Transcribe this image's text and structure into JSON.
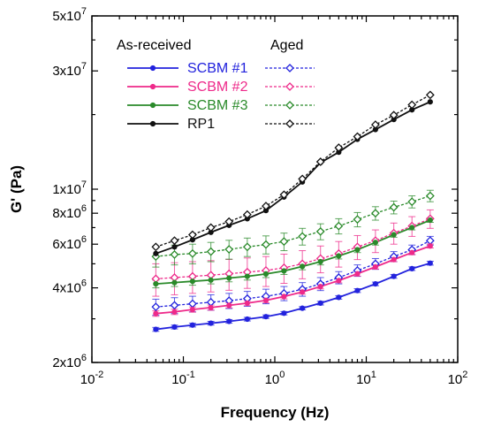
{
  "chart_data": {
    "type": "line",
    "xlabel": "Frequency (Hz)",
    "ylabel": "G' (Pa)",
    "xscale": "log",
    "yscale": "log",
    "xlim": [
      0.01,
      100
    ],
    "ylim": [
      2000000,
      50000000
    ],
    "x_ticks": [
      {
        "value": 0.01,
        "base": "10",
        "exp": "-2"
      },
      {
        "value": 0.1,
        "base": "10",
        "exp": "-1"
      },
      {
        "value": 1,
        "base": "10",
        "exp": "0"
      },
      {
        "value": 10,
        "base": "10",
        "exp": "1"
      },
      {
        "value": 100,
        "base": "10",
        "exp": "2"
      }
    ],
    "y_ticks": [
      {
        "value": 2000000,
        "base": "2x10",
        "exp": "6"
      },
      {
        "value": 4000000,
        "base": "4x10",
        "exp": "6"
      },
      {
        "value": 6000000,
        "base": "6x10",
        "exp": "6"
      },
      {
        "value": 8000000,
        "base": "8x10",
        "exp": "6"
      },
      {
        "value": 10000000,
        "base": "1x10",
        "exp": "7"
      },
      {
        "value": 30000000,
        "base": "3x10",
        "exp": "7"
      },
      {
        "value": 50000000,
        "base": "5x10",
        "exp": "7"
      }
    ],
    "legend": {
      "position": "top-left",
      "header_left": "As-received",
      "header_right": "Aged"
    },
    "x": [
      0.05,
      0.08,
      0.126,
      0.2,
      0.316,
      0.5,
      0.8,
      1.26,
      2.0,
      3.16,
      5.0,
      8.0,
      12.6,
      20.0,
      31.6,
      50.0
    ],
    "series": [
      {
        "name": "SCBM #1",
        "condition": "As-received",
        "color": "#2222dd",
        "style": "solid",
        "marker": "filled-circle",
        "values": [
          2720000,
          2780000,
          2830000,
          2880000,
          2930000,
          2990000,
          3060000,
          3160000,
          3310000,
          3470000,
          3660000,
          3900000,
          4150000,
          4450000,
          4780000,
          5030000
        ],
        "errors": [
          50000,
          50000,
          50000,
          50000,
          50000,
          50000,
          50000,
          50000,
          50000,
          60000,
          60000,
          70000,
          70000,
          80000,
          80000,
          90000
        ]
      },
      {
        "name": "SCBM #1",
        "condition": "Aged",
        "color": "#2222dd",
        "style": "dotted",
        "marker": "open-diamond",
        "values": [
          3350000,
          3400000,
          3450000,
          3500000,
          3550000,
          3620000,
          3700000,
          3800000,
          3950000,
          4150000,
          4400000,
          4700000,
          5000000,
          5350000,
          5700000,
          6200000
        ],
        "errors": [
          250000,
          250000,
          250000,
          250000,
          250000,
          250000,
          250000,
          250000,
          250000,
          250000,
          250000,
          250000,
          250000,
          250000,
          250000,
          250000
        ]
      },
      {
        "name": "SCBM #2",
        "condition": "As-received",
        "color": "#ee2a8a",
        "style": "solid",
        "marker": "filled-circle",
        "values": [
          3150000,
          3200000,
          3270000,
          3330000,
          3400000,
          3470000,
          3560000,
          3690000,
          3850000,
          4050000,
          4280000,
          4560000,
          4860000,
          5200000,
          5550000,
          5900000
        ],
        "errors": [
          80000,
          80000,
          80000,
          80000,
          80000,
          80000,
          80000,
          80000,
          80000,
          90000,
          90000,
          100000,
          100000,
          100000,
          110000,
          110000
        ]
      },
      {
        "name": "SCBM #2",
        "condition": "Aged",
        "color": "#ee2a8a",
        "style": "dotted",
        "marker": "open-diamond",
        "values": [
          4350000,
          4400000,
          4450000,
          4500000,
          4560000,
          4630000,
          4700000,
          4820000,
          5000000,
          5250000,
          5500000,
          5850000,
          6200000,
          6650000,
          7100000,
          7600000
        ],
        "errors": [
          650000,
          650000,
          650000,
          650000,
          650000,
          650000,
          650000,
          650000,
          650000,
          650000,
          650000,
          650000,
          650000,
          650000,
          650000,
          650000
        ]
      },
      {
        "name": "SCBM #3",
        "condition": "As-received",
        "color": "#2a8a2a",
        "style": "solid",
        "marker": "filled-circle",
        "values": [
          4150000,
          4200000,
          4250000,
          4300000,
          4380000,
          4450000,
          4550000,
          4680000,
          4880000,
          5100000,
          5380000,
          5700000,
          6100000,
          6550000,
          7000000,
          7500000
        ],
        "errors": [
          150000,
          150000,
          150000,
          150000,
          150000,
          150000,
          150000,
          150000,
          150000,
          150000,
          150000,
          150000,
          150000,
          150000,
          150000,
          150000
        ]
      },
      {
        "name": "SCBM #3",
        "condition": "Aged",
        "color": "#2a8a2a",
        "style": "dotted",
        "marker": "open-diamond",
        "values": [
          5350000,
          5450000,
          5500000,
          5600000,
          5720000,
          5850000,
          5980000,
          6150000,
          6450000,
          6750000,
          7100000,
          7550000,
          8000000,
          8450000,
          8900000,
          9400000
        ],
        "errors": [
          500000,
          500000,
          500000,
          500000,
          500000,
          500000,
          500000,
          500000,
          500000,
          500000,
          500000,
          500000,
          500000,
          500000,
          500000,
          500000
        ]
      },
      {
        "name": "RP1",
        "condition": "As-received",
        "color": "#111111",
        "style": "solid",
        "marker": "filled-circle",
        "values": [
          5500000,
          5850000,
          6250000,
          6700000,
          7150000,
          7600000,
          8200000,
          9300000,
          10700000,
          12800000,
          14100000,
          15900000,
          17400000,
          19100000,
          20900000,
          22500000
        ],
        "errors": [
          0,
          0,
          0,
          0,
          0,
          0,
          0,
          0,
          0,
          0,
          0,
          0,
          0,
          0,
          0,
          0
        ]
      },
      {
        "name": "RP1",
        "condition": "Aged",
        "color": "#111111",
        "style": "dotted",
        "marker": "open-diamond",
        "values": [
          5850000,
          6200000,
          6550000,
          7000000,
          7400000,
          7900000,
          8550000,
          9500000,
          11000000,
          12900000,
          14700000,
          16300000,
          18200000,
          19900000,
          21900000,
          24000000
        ],
        "errors": [
          0,
          0,
          0,
          0,
          0,
          0,
          0,
          0,
          0,
          0,
          0,
          0,
          0,
          0,
          0,
          0
        ]
      }
    ]
  }
}
